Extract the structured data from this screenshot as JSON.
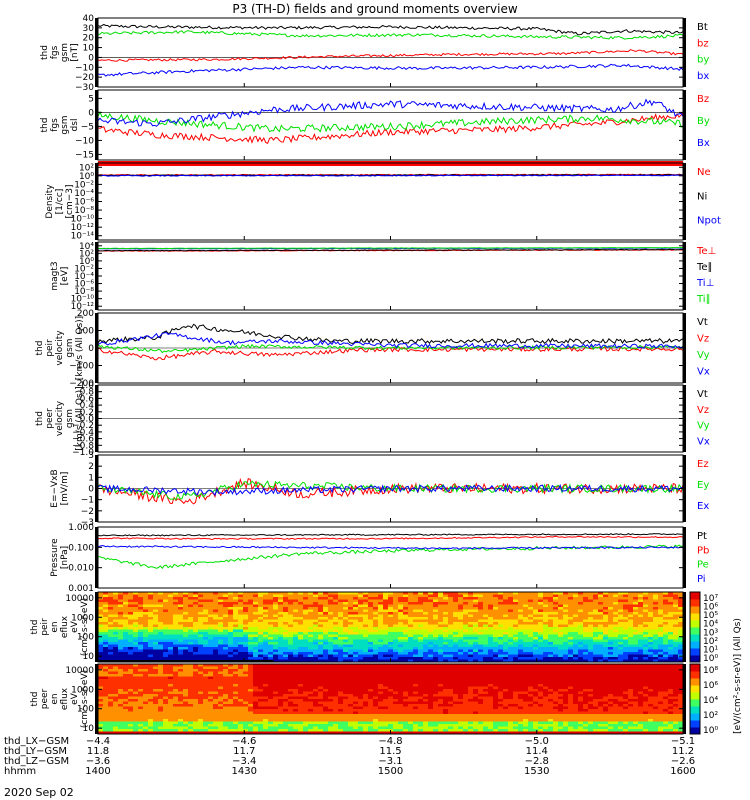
{
  "title": "P3 (TH-D) fields and ground moments overview",
  "date_label": "2020 Sep 02",
  "colors": {
    "black": "#000000",
    "red": "#ff0000",
    "green": "#00e000",
    "blue": "#0000ff"
  },
  "chart_data": [
    {
      "type": "line",
      "ylabel": [
        "thd",
        "fgs",
        "gsm",
        "[nT]"
      ],
      "ylim": [
        -30,
        40
      ],
      "yticks": [
        "40",
        "30",
        "20",
        "10",
        "0",
        "−10",
        "−20",
        "−30"
      ],
      "ytick_values": [
        40,
        30,
        20,
        10,
        0,
        -10,
        -20,
        -30
      ],
      "series": [
        {
          "name": "Bt",
          "color": "black",
          "shape": [
            [
              0,
              32
            ],
            [
              0.1,
              31
            ],
            [
              0.3,
              30
            ],
            [
              0.5,
              31
            ],
            [
              0.75,
              29
            ],
            [
              0.82,
              24
            ],
            [
              0.9,
              27
            ],
            [
              1,
              25
            ]
          ],
          "noise": 1.5
        },
        {
          "name": "bz",
          "color": "red",
          "shape": [
            [
              0,
              -3
            ],
            [
              0.2,
              -2
            ],
            [
              0.4,
              1
            ],
            [
              0.6,
              3
            ],
            [
              0.8,
              4
            ],
            [
              0.92,
              7
            ],
            [
              1,
              3
            ]
          ],
          "noise": 1.2
        },
        {
          "name": "by",
          "color": "green",
          "shape": [
            [
              0,
              24
            ],
            [
              0.15,
              26
            ],
            [
              0.35,
              22
            ],
            [
              0.55,
              23
            ],
            [
              0.75,
              21
            ],
            [
              0.9,
              20
            ],
            [
              1,
              22
            ]
          ],
          "noise": 1.5
        },
        {
          "name": "bx",
          "color": "blue",
          "shape": [
            [
              0,
              -18
            ],
            [
              0.15,
              -14
            ],
            [
              0.35,
              -10
            ],
            [
              0.55,
              -11
            ],
            [
              0.75,
              -10
            ],
            [
              0.9,
              -8
            ],
            [
              1,
              -12
            ]
          ],
          "noise": 1.5
        }
      ]
    },
    {
      "type": "line",
      "ylabel": [
        "thd",
        "fgs",
        "gsm",
        "dsl"
      ],
      "ylim": [
        -17,
        8
      ],
      "yticks": [
        "5",
        "0",
        "−5",
        "−10",
        "−15"
      ],
      "ytick_values": [
        5,
        0,
        -5,
        -10,
        -15
      ],
      "series": [
        {
          "name": "Bz",
          "color": "red",
          "shape": [
            [
              0,
              -6
            ],
            [
              0.1,
              -8
            ],
            [
              0.3,
              -10
            ],
            [
              0.5,
              -7
            ],
            [
              0.7,
              -6
            ],
            [
              0.85,
              -4
            ],
            [
              1,
              -1
            ]
          ],
          "noise": 1.2
        },
        {
          "name": "By",
          "color": "green",
          "shape": [
            [
              0,
              -1
            ],
            [
              0.1,
              -3
            ],
            [
              0.3,
              -6
            ],
            [
              0.5,
              -5
            ],
            [
              0.7,
              -3
            ],
            [
              0.85,
              -2
            ],
            [
              1,
              -4
            ]
          ],
          "noise": 1.3
        },
        {
          "name": "Bx",
          "color": "blue",
          "shape": [
            [
              0,
              -3
            ],
            [
              0.1,
              -4
            ],
            [
              0.3,
              1
            ],
            [
              0.5,
              3
            ],
            [
              0.7,
              2
            ],
            [
              0.88,
              1
            ],
            [
              0.95,
              4
            ],
            [
              1,
              -2
            ]
          ],
          "noise": 1.3
        }
      ]
    },
    {
      "type": "line",
      "ylabel": [
        "Density",
        "[1/cc]",
        "[cm−3]"
      ],
      "log": true,
      "ylim": [
        -15,
        3
      ],
      "yticks": [
        "10²",
        "10⁰",
        "10⁻²",
        "10⁻⁴",
        "10⁻⁶",
        "10⁻⁸",
        "10⁻¹⁰",
        "10⁻¹²",
        "10⁻¹⁴"
      ],
      "ytick_values": [
        2,
        0,
        -2,
        -4,
        -6,
        -8,
        -10,
        -12,
        -14
      ],
      "series": [
        {
          "name": "Ne",
          "color": "red",
          "shape": [
            [
              0,
              0.2
            ],
            [
              1,
              0.3
            ]
          ],
          "noise": 0.1
        },
        {
          "name": "Ni",
          "color": "black",
          "shape": [
            [
              0,
              0.1
            ],
            [
              1,
              0.2
            ]
          ],
          "noise": 0.1
        },
        {
          "name": "Npot",
          "color": "blue",
          "shape": [
            [
              0,
              0.0
            ],
            [
              1,
              0.1
            ]
          ],
          "noise": 0.1
        }
      ]
    },
    {
      "type": "line",
      "ylabel": [
        "magt3",
        "[eV]"
      ],
      "log": true,
      "ylim": [
        -13,
        5
      ],
      "yticks": [
        "10⁴",
        "10²",
        "10⁰",
        "10⁻²",
        "10⁻⁴",
        "10⁻⁶",
        "10⁻⁸",
        "10⁻¹⁰",
        "10⁻¹²"
      ],
      "ytick_values": [
        4,
        2,
        0,
        -2,
        -4,
        -6,
        -8,
        -10,
        -12
      ],
      "series": [
        {
          "name": "Te⊥",
          "color": "red",
          "shape": [
            [
              0,
              2.6
            ],
            [
              1,
              2.9
            ]
          ],
          "noise": 0.08
        },
        {
          "name": "Te∥",
          "color": "black",
          "shape": [
            [
              0,
              2.7
            ],
            [
              1,
              3.0
            ]
          ],
          "noise": 0.08
        },
        {
          "name": "Ti⊥",
          "color": "blue",
          "shape": [
            [
              0,
              3.2
            ],
            [
              1,
              3.4
            ]
          ],
          "noise": 0.05
        },
        {
          "name": "Ti∥",
          "color": "green",
          "shape": [
            [
              0,
              3.3
            ],
            [
              1,
              3.5
            ]
          ],
          "noise": 0.05
        }
      ]
    },
    {
      "type": "line",
      "ylabel": [
        "thd",
        "peir",
        "velocity",
        "gsm",
        "[km/s (All Qs)]"
      ],
      "ylim": [
        -200,
        200
      ],
      "yticks": [
        "200",
        "100",
        "0",
        "−100",
        "−200"
      ],
      "ytick_values": [
        200,
        100,
        0,
        -100,
        -200
      ],
      "series": [
        {
          "name": "Vt",
          "color": "black",
          "shape": [
            [
              0,
              40
            ],
            [
              0.1,
              60
            ],
            [
              0.15,
              130
            ],
            [
              0.25,
              90
            ],
            [
              0.3,
              70
            ],
            [
              0.4,
              40
            ],
            [
              1,
              40
            ]
          ],
          "noise": 14
        },
        {
          "name": "Vz",
          "color": "red",
          "shape": [
            [
              0,
              -10
            ],
            [
              0.1,
              -60
            ],
            [
              0.2,
              -20
            ],
            [
              0.3,
              -40
            ],
            [
              0.45,
              -10
            ],
            [
              1,
              -5
            ]
          ],
          "noise": 12
        },
        {
          "name": "Vy",
          "color": "green",
          "shape": [
            [
              0,
              10
            ],
            [
              0.12,
              -20
            ],
            [
              0.25,
              10
            ],
            [
              0.5,
              0
            ],
            [
              1,
              5
            ]
          ],
          "noise": 10
        },
        {
          "name": "Vx",
          "color": "blue",
          "shape": [
            [
              0,
              20
            ],
            [
              0.12,
              80
            ],
            [
              0.22,
              30
            ],
            [
              0.3,
              40
            ],
            [
              0.5,
              15
            ],
            [
              1,
              10
            ]
          ],
          "noise": 12
        }
      ]
    },
    {
      "type": "line",
      "ylabel": [
        "thd",
        "peer",
        "velocity",
        "gsm",
        "[km/s (All Qs)]"
      ],
      "ylim": [
        -1,
        1
      ],
      "yticks": [
        "1.0",
        "0.8",
        "0.6",
        "0.4",
        "0.2",
        "0.0",
        "−0.2",
        "−0.4",
        "−0.6",
        "−0.8",
        "−1.0"
      ],
      "ytick_values": [
        1,
        0.8,
        0.6,
        0.4,
        0.2,
        0,
        -0.2,
        -0.4,
        -0.6,
        -0.8,
        -1
      ],
      "series": [
        {
          "name": "Vt",
          "color": "black",
          "shape": [],
          "noise": 0
        },
        {
          "name": "Vz",
          "color": "red",
          "shape": [],
          "noise": 0
        },
        {
          "name": "Vy",
          "color": "green",
          "shape": [],
          "noise": 0
        },
        {
          "name": "Vx",
          "color": "blue",
          "shape": [],
          "noise": 0
        }
      ]
    },
    {
      "type": "line",
      "ylabel": [
        "E=−VxB",
        "[mV/m]"
      ],
      "ylim": [
        -3,
        3
      ],
      "yticks": [
        "3",
        "2",
        "1",
        "0",
        "−1",
        "−2",
        "−3"
      ],
      "ytick_values": [
        3,
        2,
        1,
        0,
        -1,
        -2,
        -3
      ],
      "series": [
        {
          "name": "Ez",
          "color": "red",
          "shape": [
            [
              0,
              0
            ],
            [
              0.15,
              -1.2
            ],
            [
              0.25,
              0.5
            ],
            [
              0.35,
              -0.5
            ],
            [
              0.5,
              0
            ],
            [
              1,
              0
            ]
          ],
          "noise": 0.45
        },
        {
          "name": "Ey",
          "color": "green",
          "shape": [
            [
              0,
              0
            ],
            [
              0.15,
              -0.8
            ],
            [
              0.25,
              0.4
            ],
            [
              0.5,
              0
            ],
            [
              1,
              0
            ]
          ],
          "noise": 0.35
        },
        {
          "name": "Ex",
          "color": "blue",
          "shape": [
            [
              0,
              0
            ],
            [
              0.2,
              -0.3
            ],
            [
              0.5,
              0
            ],
            [
              1,
              0
            ]
          ],
          "noise": 0.3
        }
      ]
    },
    {
      "type": "line",
      "ylabel": [
        "Pressure",
        "[nPa]"
      ],
      "log": true,
      "ylim": [
        -3,
        0
      ],
      "yticks": [
        "1.000",
        "0.100",
        "0.010",
        "0.001"
      ],
      "ytick_values": [
        0,
        -1,
        -2,
        -3
      ],
      "series": [
        {
          "name": "Pt",
          "color": "black",
          "shape": [
            [
              0,
              -0.42
            ],
            [
              0.2,
              -0.4
            ],
            [
              0.5,
              -0.38
            ],
            [
              0.8,
              -0.36
            ],
            [
              1,
              -0.35
            ]
          ],
          "noise": 0.03
        },
        {
          "name": "Pb",
          "color": "red",
          "shape": [
            [
              0,
              -0.55
            ],
            [
              0.2,
              -0.58
            ],
            [
              0.5,
              -0.57
            ],
            [
              0.8,
              -0.48
            ],
            [
              1,
              -0.5
            ]
          ],
          "noise": 0.03
        },
        {
          "name": "Pe",
          "color": "green",
          "shape": [
            [
              0,
              -1.5
            ],
            [
              0.1,
              -2.0
            ],
            [
              0.2,
              -1.7
            ],
            [
              0.35,
              -1.3
            ],
            [
              0.6,
              -1.1
            ],
            [
              1,
              -0.95
            ]
          ],
          "noise": 0.08
        },
        {
          "name": "Pi",
          "color": "blue",
          "shape": [
            [
              0,
              -0.95
            ],
            [
              0.3,
              -1.0
            ],
            [
              0.6,
              -1.05
            ],
            [
              1,
              -1.0
            ]
          ],
          "noise": 0.04
        }
      ]
    },
    {
      "type": "heatmap",
      "ylabel": [
        "thd",
        "peir",
        "en",
        "eflux",
        "eV",
        "(cm²-s-sr-eV)"
      ],
      "yticks": [
        "10000",
        "1000",
        "100",
        "10"
      ],
      "log": true,
      "ylim": [
        0.7,
        4.3
      ],
      "ytick_values": [
        4,
        3,
        2,
        1
      ]
    },
    {
      "type": "heatmap",
      "ylabel": [
        "thd",
        "peer",
        "en",
        "eflux",
        "eV",
        "(cm²-s-sr-eV)"
      ],
      "yticks": [
        "10000",
        "1000",
        "100",
        "10"
      ],
      "log": true,
      "ylim": [
        0.7,
        4.3
      ],
      "ytick_values": [
        4,
        3,
        2,
        1
      ]
    }
  ],
  "colorbar": {
    "title": "[eV/(cm²-s-sr-eV)] (All Qs)",
    "ticks": [
      "10⁷",
      "10⁶",
      "10⁵",
      "10⁴",
      "10³",
      "10²",
      "10¹",
      "10⁰"
    ]
  },
  "colorbar2": {
    "ticks": [
      "10⁸",
      "10⁶",
      "10⁴",
      "10²",
      "10⁰"
    ]
  },
  "xaxis": {
    "xlim": [
      1400,
      1600
    ],
    "rows": [
      {
        "label": "thd_LX−GSM",
        "values": [
          "−4.4",
          "−4.6",
          "−4.8",
          "−5.0",
          "−5.1"
        ]
      },
      {
        "label": "thd_LY−GSM",
        "values": [
          "11.8",
          "11.7",
          "11.5",
          "11.4",
          "11.2"
        ]
      },
      {
        "label": "thd_LZ−GSM",
        "values": [
          "−3.6",
          "−3.4",
          "−3.1",
          "−2.8",
          "−2.6"
        ]
      },
      {
        "label": "hhmm",
        "values": [
          "1400",
          "1430",
          "1500",
          "1530",
          "1600"
        ]
      }
    ]
  }
}
